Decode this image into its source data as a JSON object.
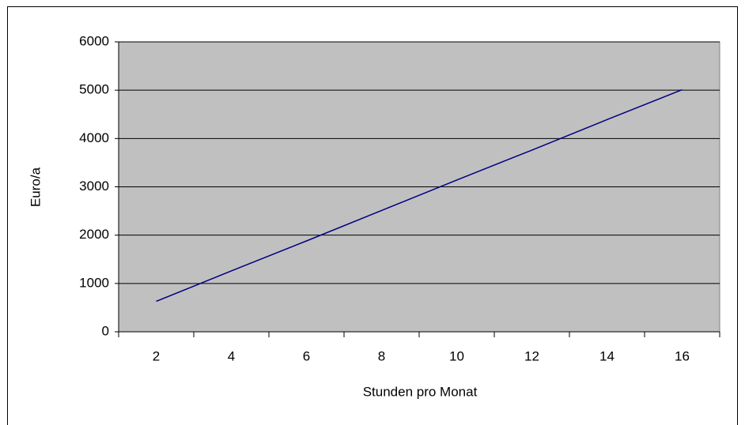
{
  "chart_data": {
    "type": "line",
    "xlabel": "Stunden pro Monat",
    "ylabel": "Euro/a",
    "categories": [
      "2",
      "4",
      "6",
      "8",
      "10",
      "12",
      "14",
      "16"
    ],
    "series": [
      {
        "color": "#000080",
        "values": [
          630,
          1260,
          1880,
          2510,
          3140,
          3760,
          4390,
          5010
        ]
      }
    ],
    "ylim": [
      0,
      6000
    ],
    "yticks": [
      0,
      1000,
      2000,
      3000,
      4000,
      5000,
      6000
    ],
    "grid": true,
    "plot_background": "#c0c0c0"
  }
}
